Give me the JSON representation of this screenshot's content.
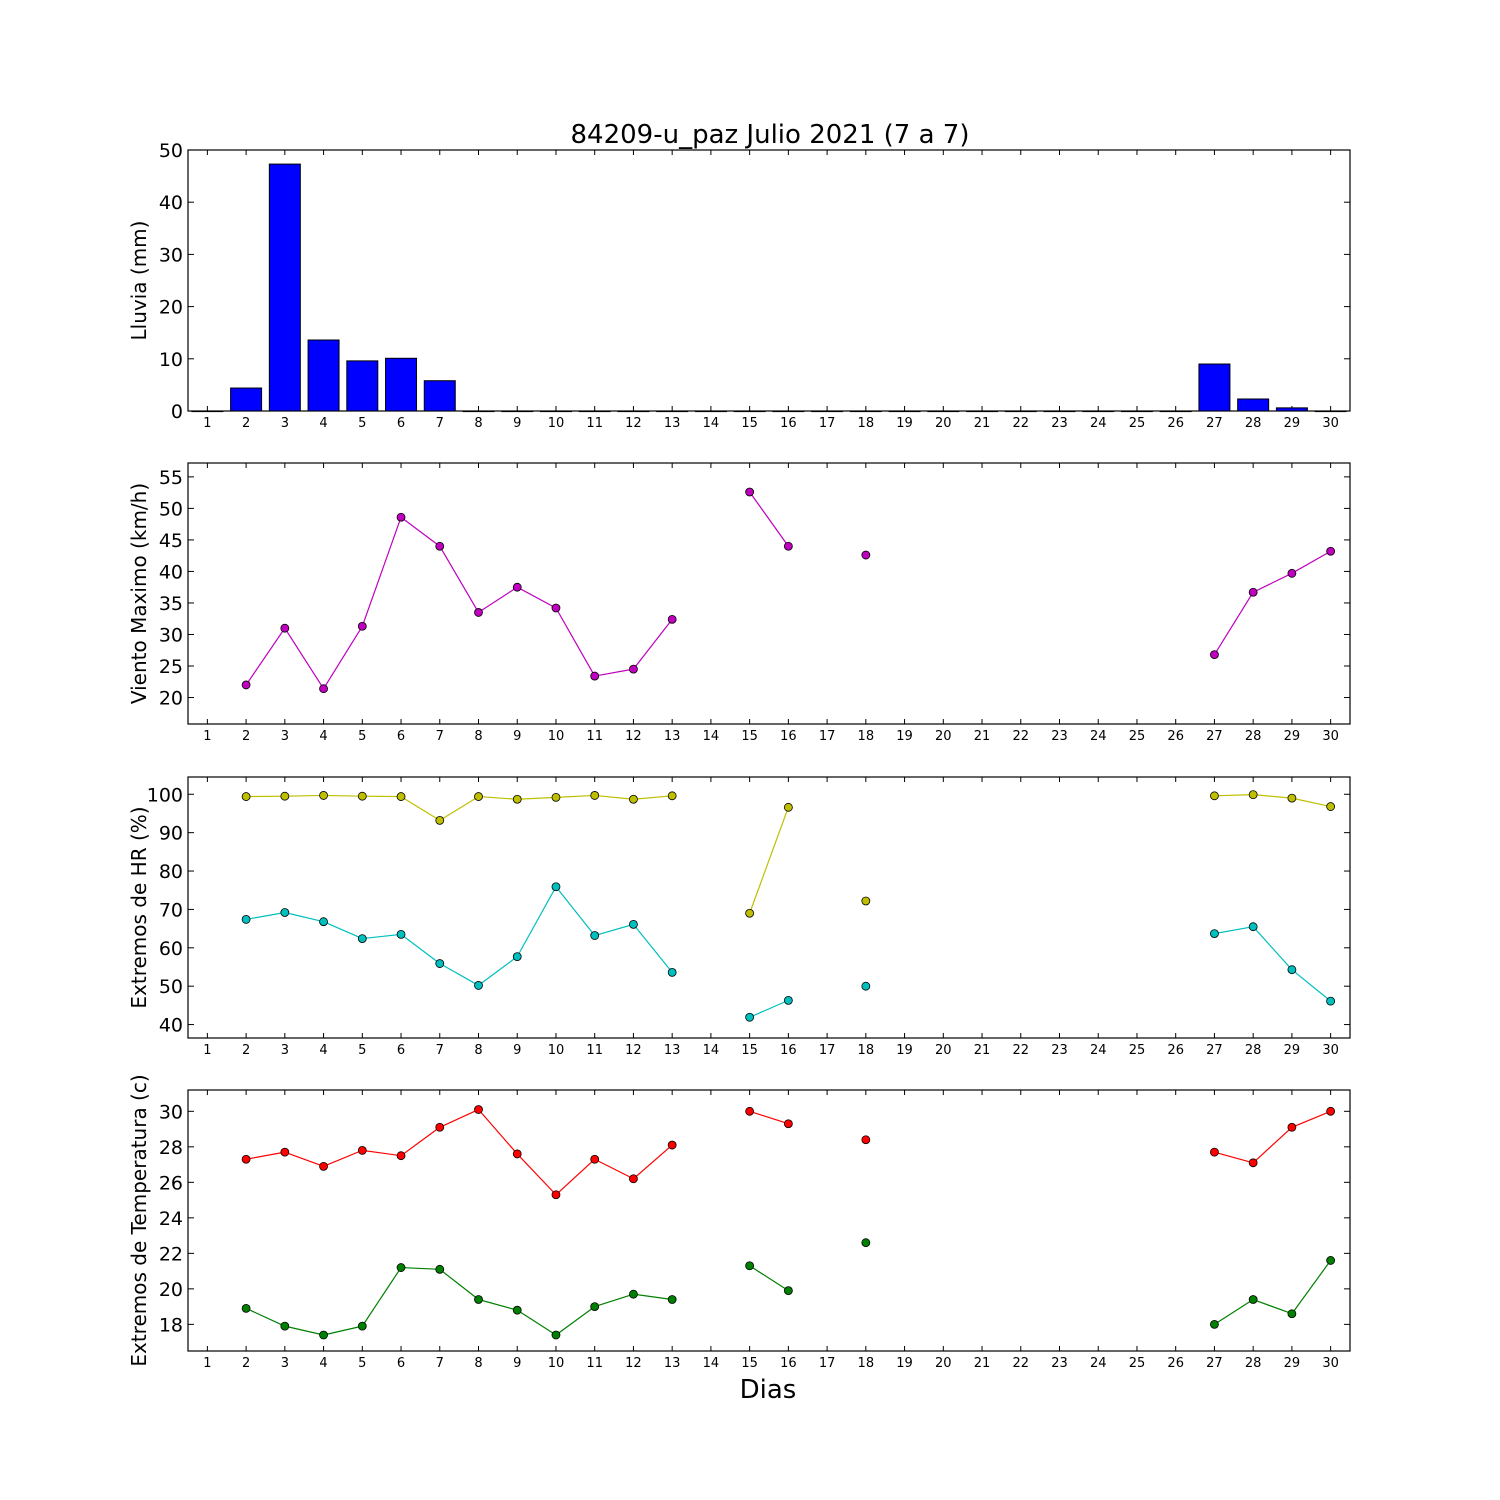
{
  "chart_data": {
    "title": "84209-u_paz Julio 2021  (7 a 7)",
    "xlabel": "Dias",
    "categories": [
      1,
      2,
      3,
      4,
      5,
      6,
      7,
      8,
      9,
      10,
      11,
      12,
      13,
      14,
      15,
      16,
      17,
      18,
      19,
      20,
      21,
      22,
      23,
      24,
      25,
      26,
      27,
      28,
      29,
      30
    ],
    "panels": [
      {
        "type": "bar",
        "ylabel": "Lluvia (mm)",
        "ylim": [
          0,
          50
        ],
        "yticks": [
          0,
          10,
          20,
          30,
          40,
          50
        ],
        "series": [
          {
            "values": [
              0,
              4.4,
              47.3,
              13.6,
              9.6,
              10.1,
              5.8,
              0,
              0,
              0,
              0,
              0,
              0,
              0,
              0,
              0,
              0,
              0,
              0,
              0,
              0,
              0,
              0,
              0,
              0,
              0,
              9.0,
              2.3,
              0.6,
              0
            ],
            "color": "#0000ff"
          }
        ]
      },
      {
        "type": "line",
        "ylabel": "Viento Maximo (km/h)",
        "ylim": [
          15.8,
          57.2
        ],
        "yticks": [
          20,
          25,
          30,
          35,
          40,
          45,
          50,
          55
        ],
        "series": [
          {
            "values": [
              null,
              22.0,
              31.0,
              21.4,
              31.3,
              48.6,
              44.0,
              33.5,
              37.5,
              34.2,
              23.4,
              24.5,
              32.4,
              null,
              52.6,
              44.0,
              null,
              42.6,
              null,
              null,
              null,
              null,
              null,
              null,
              null,
              null,
              26.8,
              36.7,
              39.7,
              43.2
            ],
            "color": "#bf00bf"
          }
        ]
      },
      {
        "type": "line",
        "ylabel": "Extremos de HR (%)",
        "ylim": [
          36.5,
          104.5
        ],
        "yticks": [
          40,
          50,
          60,
          70,
          80,
          90,
          100
        ],
        "series": [
          {
            "values": [
              null,
              99.4,
              99.5,
              99.7,
              99.5,
              99.4,
              93.2,
              99.4,
              98.7,
              99.2,
              99.7,
              98.7,
              99.6,
              null,
              69.0,
              96.6,
              null,
              72.2,
              null,
              null,
              null,
              null,
              null,
              null,
              null,
              null,
              99.6,
              99.9,
              99.0,
              96.8
            ],
            "color": "#bfbf00"
          },
          {
            "values": [
              null,
              67.4,
              69.2,
              66.8,
              62.4,
              63.5,
              55.9,
              50.2,
              57.7,
              75.9,
              63.2,
              66.1,
              53.6,
              null,
              41.9,
              46.3,
              null,
              50.0,
              null,
              null,
              null,
              null,
              null,
              null,
              null,
              null,
              63.7,
              65.5,
              54.3,
              46.1
            ],
            "color": "#00bfbf"
          }
        ]
      },
      {
        "type": "line",
        "ylabel": "Extremos de Temperatura (c)",
        "ylim": [
          16.5,
          31.2
        ],
        "yticks": [
          18,
          20,
          22,
          24,
          26,
          28,
          30
        ],
        "series": [
          {
            "values": [
              null,
              27.3,
              27.7,
              26.9,
              27.8,
              27.5,
              29.1,
              30.1,
              27.6,
              25.3,
              27.3,
              26.2,
              28.1,
              null,
              30.0,
              29.3,
              null,
              28.4,
              null,
              null,
              null,
              null,
              null,
              null,
              null,
              null,
              27.7,
              27.1,
              29.1,
              30.0
            ],
            "color": "#ff0000"
          },
          {
            "values": [
              null,
              18.9,
              17.9,
              17.4,
              17.9,
              21.2,
              21.1,
              19.4,
              18.8,
              17.4,
              19.0,
              19.7,
              19.4,
              null,
              21.3,
              19.9,
              null,
              22.6,
              null,
              null,
              null,
              null,
              null,
              null,
              null,
              null,
              18.0,
              19.4,
              18.6,
              21.6
            ],
            "color": "#008000"
          }
        ]
      }
    ]
  }
}
